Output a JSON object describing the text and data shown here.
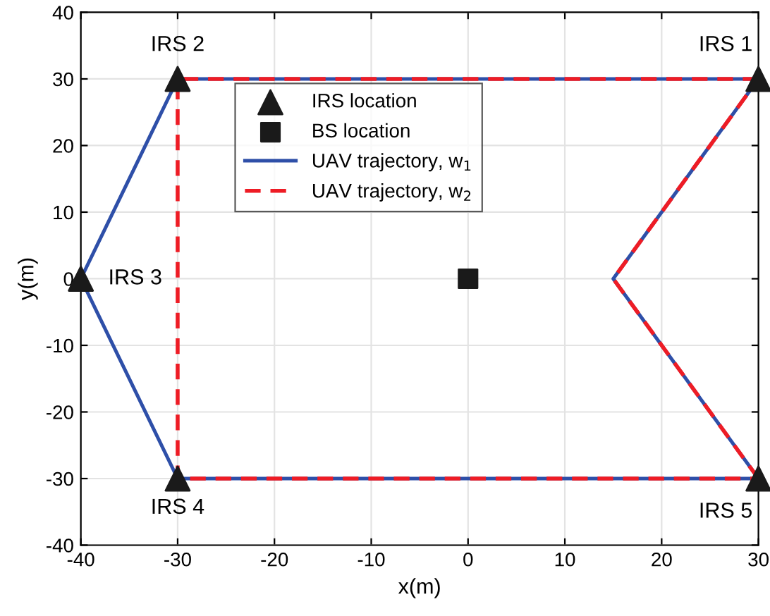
{
  "chart_data": {
    "type": "line",
    "xlabel": "x(m)",
    "ylabel": "y(m)",
    "xlim": [
      -40,
      30
    ],
    "ylim": [
      -40,
      40
    ],
    "xticks": [
      -40,
      -30,
      -20,
      -10,
      0,
      10,
      20,
      30
    ],
    "yticks": [
      -40,
      -30,
      -20,
      -10,
      0,
      10,
      20,
      30,
      40
    ],
    "grid": true,
    "legend": "top",
    "series": [
      {
        "name": "IRS location",
        "type": "scatter",
        "marker": "triangle",
        "color": "#1a1a1a",
        "x": [
          30,
          -30,
          -40,
          -30,
          30
        ],
        "values": [
          30,
          30,
          0,
          -30,
          -30
        ]
      },
      {
        "name": "BS location",
        "type": "scatter",
        "marker": "square",
        "color": "#1a1a1a",
        "x": [
          0
        ],
        "values": [
          0
        ]
      },
      {
        "name": "UAV trajectory, w$_{1}$",
        "line_style": "solid",
        "color": "#2e4fa8",
        "x": [
          30,
          -30,
          -40,
          -30,
          30
        ],
        "values": [
          30,
          30,
          0,
          -30,
          -30
        ]
      },
      {
        "line_style": "solid",
        "color": "#2e4fa8",
        "x": [
          30,
          15,
          30
        ],
        "values": [
          -30,
          0,
          30
        ]
      },
      {
        "name": "UAV trajectory, w$_{2}$",
        "line_style": "dashed",
        "color": "#ee1c25",
        "x": [
          30,
          -30,
          -30,
          30
        ],
        "values": [
          30,
          30,
          -30,
          -30
        ]
      },
      {
        "line_style": "dashed",
        "color": "#ee1c25",
        "x": [
          30,
          15,
          30
        ],
        "values": [
          -30,
          0,
          30
        ]
      }
    ],
    "annotations": [
      {
        "text": "IRS 1",
        "x": 30,
        "y": 30
      },
      {
        "text": "IRS 2",
        "x": -30,
        "y": 30
      },
      {
        "text": "IRS 3",
        "x": -40,
        "y": 0
      },
      {
        "text": "IRS 4",
        "x": -30,
        "y": -30
      },
      {
        "text": "IRS 5",
        "x": 30,
        "y": -30
      }
    ]
  }
}
